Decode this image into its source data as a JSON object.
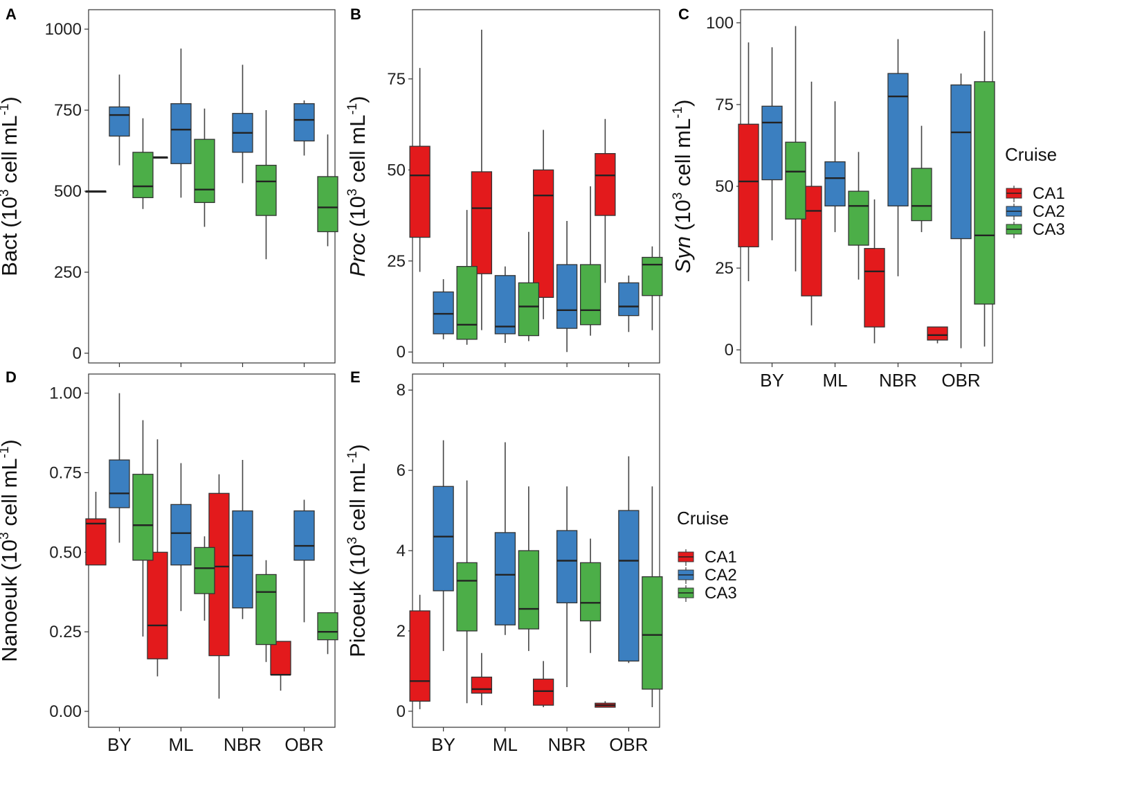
{
  "figure": {
    "groups": [
      "BY",
      "ML",
      "NBR",
      "OBR"
    ],
    "legend_title": "Cruise",
    "legend_entries": [
      "CA1",
      "CA2",
      "CA3"
    ],
    "cruise_colors": {
      "CA1": "#e31a1c",
      "CA2": "#3b7fc0",
      "CA3": "#4cae48"
    },
    "unit_prefix": "(10",
    "unit_exp": "3",
    "unit_mid": " cell mL",
    "unit_exp2": "-1",
    "unit_suffix": ")"
  },
  "chart_data": [
    {
      "panel": "A",
      "type": "box",
      "ylabel": "Bact",
      "ylabel_italic": false,
      "ylim": [
        -30,
        1060
      ],
      "yticks": [
        0,
        250,
        500,
        750,
        1000
      ],
      "ytick_labels": [
        "0",
        "250",
        "500",
        "750",
        "1000"
      ],
      "show_x_labels": false,
      "series": [
        {
          "name": "CA1",
          "boxes": [
            {
              "group": "BY",
              "min": 500,
              "q1": 500,
              "median": 500,
              "q3": 500,
              "max": 500
            },
            {
              "group": "ML",
              "min": 605,
              "q1": 605,
              "median": 605,
              "q3": 605,
              "max": 605
            },
            null,
            null
          ]
        },
        {
          "name": "CA2",
          "boxes": [
            {
              "group": "BY",
              "min": 580,
              "q1": 670,
              "median": 735,
              "q3": 760,
              "max": 860
            },
            {
              "group": "ML",
              "min": 480,
              "q1": 585,
              "median": 690,
              "q3": 770,
              "max": 940
            },
            {
              "group": "NBR",
              "min": 525,
              "q1": 620,
              "median": 680,
              "q3": 740,
              "max": 890
            },
            {
              "group": "OBR",
              "min": 610,
              "q1": 655,
              "median": 720,
              "q3": 770,
              "max": 780
            }
          ]
        },
        {
          "name": "CA3",
          "boxes": [
            {
              "group": "BY",
              "min": 445,
              "q1": 480,
              "median": 515,
              "q3": 620,
              "max": 725
            },
            {
              "group": "ML",
              "min": 390,
              "q1": 465,
              "median": 505,
              "q3": 660,
              "max": 755
            },
            {
              "group": "NBR",
              "min": 290,
              "q1": 425,
              "median": 530,
              "q3": 580,
              "max": 750
            },
            {
              "group": "OBR",
              "min": 330,
              "q1": 375,
              "median": 450,
              "q3": 545,
              "max": 675
            }
          ]
        }
      ]
    },
    {
      "panel": "B",
      "type": "box",
      "ylabel": "Proc",
      "ylabel_italic": true,
      "ylim": [
        -3,
        94
      ],
      "yticks": [
        0,
        25,
        50,
        75
      ],
      "ytick_labels": [
        "0",
        "25",
        "50",
        "75"
      ],
      "show_x_labels": false,
      "series": [
        {
          "name": "CA1",
          "boxes": [
            {
              "group": "BY",
              "min": 22,
              "q1": 31.5,
              "median": 48.5,
              "q3": 56.5,
              "max": 78
            },
            {
              "group": "ML",
              "min": 6,
              "q1": 21.5,
              "median": 39.5,
              "q3": 49.5,
              "max": 88.5
            },
            {
              "group": "NBR",
              "min": 9,
              "q1": 15,
              "median": 43,
              "q3": 50,
              "max": 61
            },
            {
              "group": "OBR",
              "min": 19,
              "q1": 37.5,
              "median": 48.5,
              "q3": 54.5,
              "max": 64
            }
          ]
        },
        {
          "name": "CA2",
          "boxes": [
            {
              "group": "BY",
              "min": 3.5,
              "q1": 5,
              "median": 10.5,
              "q3": 16.5,
              "max": 20
            },
            {
              "group": "ML",
              "min": 2.5,
              "q1": 5,
              "median": 7,
              "q3": 21,
              "max": 23.5
            },
            {
              "group": "NBR",
              "min": 0,
              "q1": 6.5,
              "median": 11.5,
              "q3": 24,
              "max": 36
            },
            {
              "group": "OBR",
              "min": 5.5,
              "q1": 10,
              "median": 12.5,
              "q3": 19,
              "max": 21
            }
          ]
        },
        {
          "name": "CA3",
          "boxes": [
            {
              "group": "BY",
              "min": 2,
              "q1": 3.5,
              "median": 7.5,
              "q3": 23.5,
              "max": 39
            },
            {
              "group": "ML",
              "min": 3,
              "q1": 4.5,
              "median": 12.5,
              "q3": 19,
              "max": 33
            },
            {
              "group": "NBR",
              "min": 4.5,
              "q1": 7.5,
              "median": 11.5,
              "q3": 24,
              "max": 45.5
            },
            {
              "group": "OBR",
              "min": 6,
              "q1": 15.5,
              "median": 24,
              "q3": 26,
              "max": 29
            }
          ]
        }
      ]
    },
    {
      "panel": "C",
      "type": "box",
      "ylabel": "Syn",
      "ylabel_italic": true,
      "ylim": [
        -4,
        104
      ],
      "yticks": [
        0,
        25,
        50,
        75,
        100
      ],
      "ytick_labels": [
        "0",
        "25",
        "50",
        "75",
        "100"
      ],
      "show_x_labels": true,
      "series": [
        {
          "name": "CA1",
          "boxes": [
            {
              "group": "BY",
              "min": 21,
              "q1": 31.5,
              "median": 51.5,
              "q3": 69,
              "max": 94
            },
            {
              "group": "ML",
              "min": 7.5,
              "q1": 16.5,
              "median": 42.5,
              "q3": 50,
              "max": 82
            },
            {
              "group": "NBR",
              "min": 2,
              "q1": 7,
              "median": 24,
              "q3": 31,
              "max": 46
            },
            {
              "group": "OBR",
              "min": 2,
              "q1": 3,
              "median": 4.5,
              "q3": 7,
              "max": 7
            }
          ]
        },
        {
          "name": "CA2",
          "boxes": [
            {
              "group": "BY",
              "min": 33.5,
              "q1": 52,
              "median": 69.5,
              "q3": 74.5,
              "max": 92.5
            },
            {
              "group": "ML",
              "min": 36,
              "q1": 44,
              "median": 52.5,
              "q3": 57.5,
              "max": 76
            },
            {
              "group": "NBR",
              "min": 22.5,
              "q1": 44,
              "median": 77.5,
              "q3": 84.5,
              "max": 95
            },
            {
              "group": "OBR",
              "min": 0.5,
              "q1": 34,
              "median": 66.5,
              "q3": 81,
              "max": 84.5
            }
          ]
        },
        {
          "name": "CA3",
          "boxes": [
            {
              "group": "BY",
              "min": 24,
              "q1": 40,
              "median": 54.5,
              "q3": 63.5,
              "max": 99
            },
            {
              "group": "ML",
              "min": 21.5,
              "q1": 32,
              "median": 44,
              "q3": 48.5,
              "max": 60.5
            },
            {
              "group": "NBR",
              "min": 36,
              "q1": 39.5,
              "median": 44,
              "q3": 55.5,
              "max": 68.5
            },
            {
              "group": "OBR",
              "min": 1,
              "q1": 14,
              "median": 35,
              "q3": 82,
              "max": 97.5
            }
          ]
        }
      ]
    },
    {
      "panel": "D",
      "type": "box",
      "ylabel": "Nanoeuk",
      "ylabel_italic": false,
      "ylim": [
        -0.05,
        1.06
      ],
      "yticks": [
        0,
        0.25,
        0.5,
        0.75,
        1.0
      ],
      "ytick_labels": [
        "0.00",
        "0.25",
        "0.50",
        "0.75",
        "1.00"
      ],
      "show_x_labels": true,
      "series": [
        {
          "name": "CA1",
          "boxes": [
            {
              "group": "BY",
              "min": 0.46,
              "q1": 0.46,
              "median": 0.59,
              "q3": 0.605,
              "max": 0.69
            },
            {
              "group": "ML",
              "min": 0.11,
              "q1": 0.165,
              "median": 0.27,
              "q3": 0.5,
              "max": 0.855
            },
            {
              "group": "NBR",
              "min": 0.04,
              "q1": 0.175,
              "median": 0.455,
              "q3": 0.685,
              "max": 0.745
            },
            {
              "group": "OBR",
              "min": 0.065,
              "q1": 0.115,
              "median": 0.115,
              "q3": 0.22,
              "max": 0.22
            }
          ]
        },
        {
          "name": "CA2",
          "boxes": [
            {
              "group": "BY",
              "min": 0.53,
              "q1": 0.64,
              "median": 0.685,
              "q3": 0.79,
              "max": 1.0
            },
            {
              "group": "ML",
              "min": 0.315,
              "q1": 0.46,
              "median": 0.56,
              "q3": 0.65,
              "max": 0.78
            },
            {
              "group": "NBR",
              "min": 0.29,
              "q1": 0.325,
              "median": 0.49,
              "q3": 0.63,
              "max": 0.79
            },
            {
              "group": "OBR",
              "min": 0.28,
              "q1": 0.475,
              "median": 0.52,
              "q3": 0.63,
              "max": 0.665
            }
          ]
        },
        {
          "name": "CA3",
          "boxes": [
            {
              "group": "BY",
              "min": 0.235,
              "q1": 0.475,
              "median": 0.585,
              "q3": 0.745,
              "max": 0.915
            },
            {
              "group": "ML",
              "min": 0.285,
              "q1": 0.37,
              "median": 0.45,
              "q3": 0.515,
              "max": 0.55
            },
            {
              "group": "NBR",
              "min": 0.155,
              "q1": 0.21,
              "median": 0.375,
              "q3": 0.43,
              "max": 0.475
            },
            {
              "group": "OBR",
              "min": 0.18,
              "q1": 0.225,
              "median": 0.25,
              "q3": 0.31,
              "max": 0.31
            }
          ]
        }
      ]
    },
    {
      "panel": "E",
      "type": "box",
      "ylabel": "Picoeuk",
      "ylabel_italic": false,
      "ylim": [
        -0.4,
        8.4
      ],
      "yticks": [
        0,
        2,
        4,
        6,
        8
      ],
      "ytick_labels": [
        "0",
        "2",
        "4",
        "6",
        "8"
      ],
      "show_x_labels": true,
      "series": [
        {
          "name": "CA1",
          "boxes": [
            {
              "group": "BY",
              "min": 0.05,
              "q1": 0.25,
              "median": 0.75,
              "q3": 2.5,
              "max": 2.9
            },
            {
              "group": "ML",
              "min": 0.15,
              "q1": 0.45,
              "median": 0.55,
              "q3": 0.85,
              "max": 1.45
            },
            {
              "group": "NBR",
              "min": 0.1,
              "q1": 0.15,
              "median": 0.5,
              "q3": 0.8,
              "max": 1.25
            },
            {
              "group": "OBR",
              "min": 0.1,
              "q1": 0.1,
              "median": 0.15,
              "q3": 0.2,
              "max": 0.25
            }
          ]
        },
        {
          "name": "CA2",
          "boxes": [
            {
              "group": "BY",
              "min": 1.5,
              "q1": 3.0,
              "median": 4.35,
              "q3": 5.6,
              "max": 6.75
            },
            {
              "group": "ML",
              "min": 1.9,
              "q1": 2.15,
              "median": 3.4,
              "q3": 4.45,
              "max": 6.7
            },
            {
              "group": "NBR",
              "min": 0.6,
              "q1": 2.7,
              "median": 3.75,
              "q3": 4.5,
              "max": 5.6
            },
            {
              "group": "OBR",
              "min": 1.2,
              "q1": 1.25,
              "median": 3.75,
              "q3": 5.0,
              "max": 6.35
            }
          ]
        },
        {
          "name": "CA3",
          "boxes": [
            {
              "group": "BY",
              "min": 0.2,
              "q1": 2.0,
              "median": 3.25,
              "q3": 3.7,
              "max": 5.75
            },
            {
              "group": "ML",
              "min": 1.5,
              "q1": 2.05,
              "median": 2.55,
              "q3": 4.0,
              "max": 5.6
            },
            {
              "group": "NBR",
              "min": 1.45,
              "q1": 2.25,
              "median": 2.7,
              "q3": 3.7,
              "max": 4.3
            },
            {
              "group": "OBR",
              "min": 0.1,
              "q1": 0.55,
              "median": 1.9,
              "q3": 3.35,
              "max": 5.6
            }
          ]
        }
      ]
    }
  ]
}
